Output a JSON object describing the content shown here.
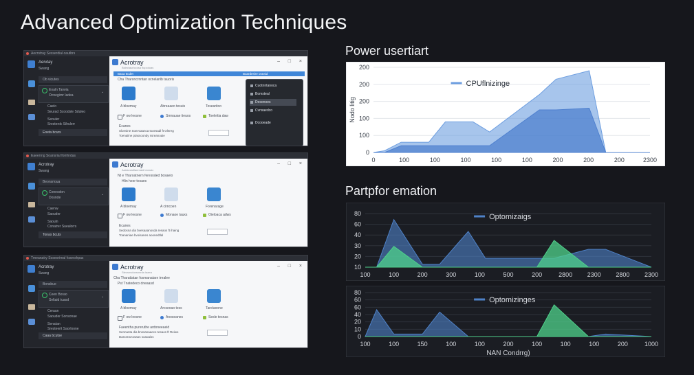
{
  "page": {
    "title": "Advanced Optimization Techniques"
  },
  "screenshots": [
    {
      "titlebar": "Aecrotray   Sesserdial oautbrs",
      "sidebar": {
        "app_name": "Aervtay",
        "app_sub": "Swang",
        "row1": "Ob vicutes",
        "group_line1": "Eoaln Tarwia",
        "group_line2": "Ocnegirnr ladea",
        "item1": "Caelo",
        "item2": "Seurad Scoodsle Sduleo",
        "item3": "Seouler",
        "item4": "Sresterdc Sihulerr",
        "button": "Eoeta bcurs"
      },
      "pane": {
        "title": "Acrotray",
        "subtitle": "Bslectauriccosa fiupcdoas",
        "bar_left": "Baoa ttcdet",
        "bar_right": "Buardeslre oseaid",
        "heading": "Cha Tharoncrnntan ocnelanlb tauoris",
        "tile1": "A bloemay",
        "tile2": "Abreaaeo tesuis",
        "tile3": "Tosearitoo",
        "check1": "F ow leosne",
        "check2": "Smnauae tieuos",
        "check3": "Toeleitia daw",
        "field": "",
        "notes_head": "Ecanes",
        "note1": "Sloesine Soevcaanca tsoesadl ft Olereg",
        "note2": "Toenaiine ptassoondy ssreanoaie"
      },
      "menu": [
        "Cuotnntanoca",
        "Bomsteal",
        "Desonoes",
        "Cvnsaedco",
        "Dcooeade"
      ]
    },
    {
      "titlebar": "Eaeerrng   Soansrial fomhrdas",
      "sidebar": {
        "app_name": "Acrotray",
        "app_sub": "Swang",
        "row1": "Beonsrioua",
        "group_line1": "Conesdon",
        "group_line2": "Dosnde",
        "item1": "Caenw",
        "item2": "Saouder",
        "item3": "Saouln",
        "item4": "Conatrer Suealorrs",
        "button": "Tonas bcuts"
      },
      "pane": {
        "title": "Acrotray",
        "subtitle": "Aasiscusitlanrnaid teonaic",
        "heading": "Nt e Tharoatnern feresraled bosaeio",
        "heading2": "Hlin hoor tosaes",
        "tile1": "A bloemay",
        "tile2": "A cirncoen",
        "tile3": "Forenarage",
        "check1": "F ow leosne",
        "check2": "Monaoe tauxs",
        "check3": "Oieloaca adws",
        "field": "",
        "notes_head": "Ecanes",
        "note1": "Sedosna dia bvesaaanosda resaos ft ihaing",
        "note2": "Toananiae bvoisanes aoonedtlal"
      }
    },
    {
      "titlebar": "Tmeanatry   Soseorimal foareshpas",
      "sidebar": {
        "app_name": "Acrotray",
        "app_sub": "Swang",
        "row1": "Bonsbue",
        "group_line1": "Ceen Borao",
        "group_line2": "Seltaid tuaod",
        "item1": "Ceraun",
        "item2": "Saouder Sonsonae",
        "item3": "Senatan",
        "item4": "Sresteerit Saorloone",
        "button": "Caaa bcutse"
      },
      "pane": {
        "title": "Acrotray",
        "subtitle": "Stecsnsdonsnsrda iaaea",
        "heading": "Cha Tharattatan fosmanatarn trealee",
        "heading2": "Pst Tnatedeco dneaasd",
        "tile1": "A bloemay",
        "tile2": "Arcseoao tess",
        "tile3": "Tarelaoone",
        "check1": "F ow leosne",
        "check2": "Anoseanes",
        "check3": "Sesle tesnas",
        "field": "",
        "notes_head": "Faeentha pureruthe ardoneeaeid",
        "note1": "Sennanta dia bnssanaaece tesaos ft Reiwe",
        "note2": "Danoma tosaos soaoaiss"
      }
    }
  ],
  "chart_top": {
    "heading": "Power usertiart",
    "chart_data": {
      "type": "area",
      "title": "",
      "ylabel": "Nodo litig",
      "xlabel": "",
      "x_tick_labels": [
        "0",
        "100",
        "100",
        "100",
        "100",
        "100",
        "200",
        "200",
        "200",
        "2300"
      ],
      "y_tick_labels": [
        "0",
        "100",
        "100",
        "200",
        "200",
        "200"
      ],
      "ylim": [
        0,
        250
      ],
      "series": [
        {
          "name": "CPUflnizinge",
          "color": "#6d9ee0",
          "values": [
            0,
            5,
            30,
            30,
            90,
            90,
            60,
            170,
            215,
            240,
            0,
            0
          ]
        },
        {
          "name": "",
          "color": "#4f80cf",
          "values": [
            0,
            0,
            20,
            20,
            20,
            20,
            20,
            125,
            125,
            130,
            0,
            0
          ]
        }
      ],
      "grid": true,
      "legend": "top-center"
    }
  },
  "chart_mid_heading": "Partpfor emation",
  "chart_mid": {
    "chart_data": {
      "type": "area",
      "title": "",
      "x_tick_labels": [
        "100",
        "100",
        "200",
        "300",
        "100",
        "500",
        "200",
        "2800",
        "2300",
        "2800",
        "2300"
      ],
      "y_tick_labels": [
        "10",
        "20",
        "30",
        "40",
        "60",
        "80"
      ],
      "ylim": [
        0,
        90
      ],
      "series": [
        {
          "name": "Optomizaigs",
          "color": "#4f82c8",
          "values": [
            0,
            0,
            80,
            5,
            5,
            60,
            15,
            15,
            15,
            30,
            30,
            0
          ]
        },
        {
          "name": "",
          "color": "#4fd18b",
          "values": [
            0,
            0,
            35,
            0,
            0,
            0,
            0,
            0,
            45,
            0,
            0,
            0
          ]
        }
      ],
      "grid": true,
      "legend": "top-center"
    }
  },
  "chart_bottom": {
    "chart_data": {
      "type": "area",
      "title": "",
      "xlabel": "NAN Condrrg)",
      "x_tick_labels": [
        "100",
        "100",
        "150",
        "100",
        "100",
        "200",
        "100",
        "100",
        "100",
        "200",
        "1000"
      ],
      "y_tick_labels": [
        "0",
        "10",
        "20",
        "40",
        "60",
        "60",
        "80"
      ],
      "ylim": [
        0,
        90
      ],
      "series": [
        {
          "name": "Optomizinges",
          "color": "#4f82c8",
          "values": [
            0,
            55,
            5,
            5,
            50,
            0,
            0,
            0,
            0,
            0,
            5,
            0
          ]
        },
        {
          "name": "",
          "color": "#4fd18b",
          "values": [
            0,
            0,
            0,
            0,
            0,
            0,
            0,
            0,
            65,
            0,
            0,
            0
          ]
        }
      ],
      "grid": true,
      "legend": "top-center"
    }
  }
}
